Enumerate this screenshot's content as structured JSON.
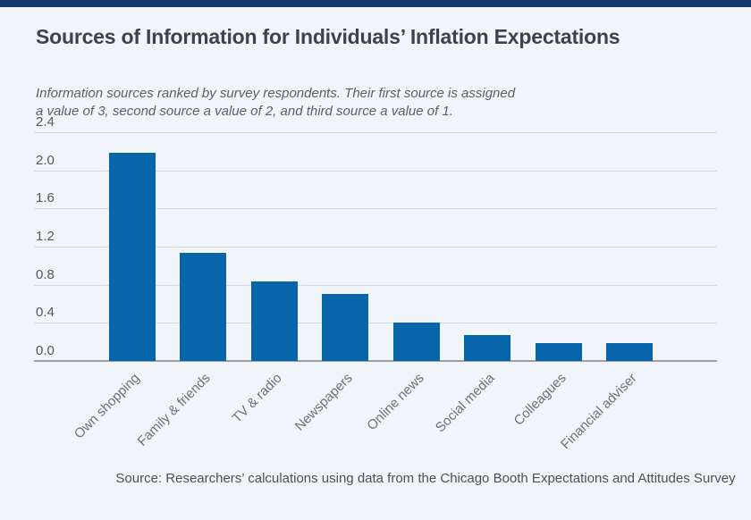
{
  "page": {
    "background_color": "#f1f5f9",
    "top_bar_color": "#14386b"
  },
  "chart_data": {
    "type": "bar",
    "title": "Sources of Information for Individuals’ Inflation Expectations",
    "subtitle_line1": "Information sources ranked by survey respondents. Their first source is assigned",
    "subtitle_line2": "a value of 3, second source a value of 2, and third source a value of 1.",
    "categories": [
      "Own shopping",
      "Family & friends",
      "TV & radio",
      "Newspapers",
      "Online news",
      "Social media",
      "Colleagues",
      "Financial adviser"
    ],
    "values": [
      2.18,
      1.13,
      0.83,
      0.7,
      0.4,
      0.27,
      0.19,
      0.19
    ],
    "y_ticks": [
      2.4,
      2.0,
      1.6,
      1.2,
      0.8,
      0.4,
      0.0
    ],
    "ylim": [
      0,
      2.4
    ],
    "xlabel": "",
    "ylabel": "",
    "grid": true,
    "legend": false,
    "bar_color": "#0765a9",
    "source": "Source: Researchers’ calculations using data from the Chicago Booth Expectations and Attitudes Survey"
  }
}
